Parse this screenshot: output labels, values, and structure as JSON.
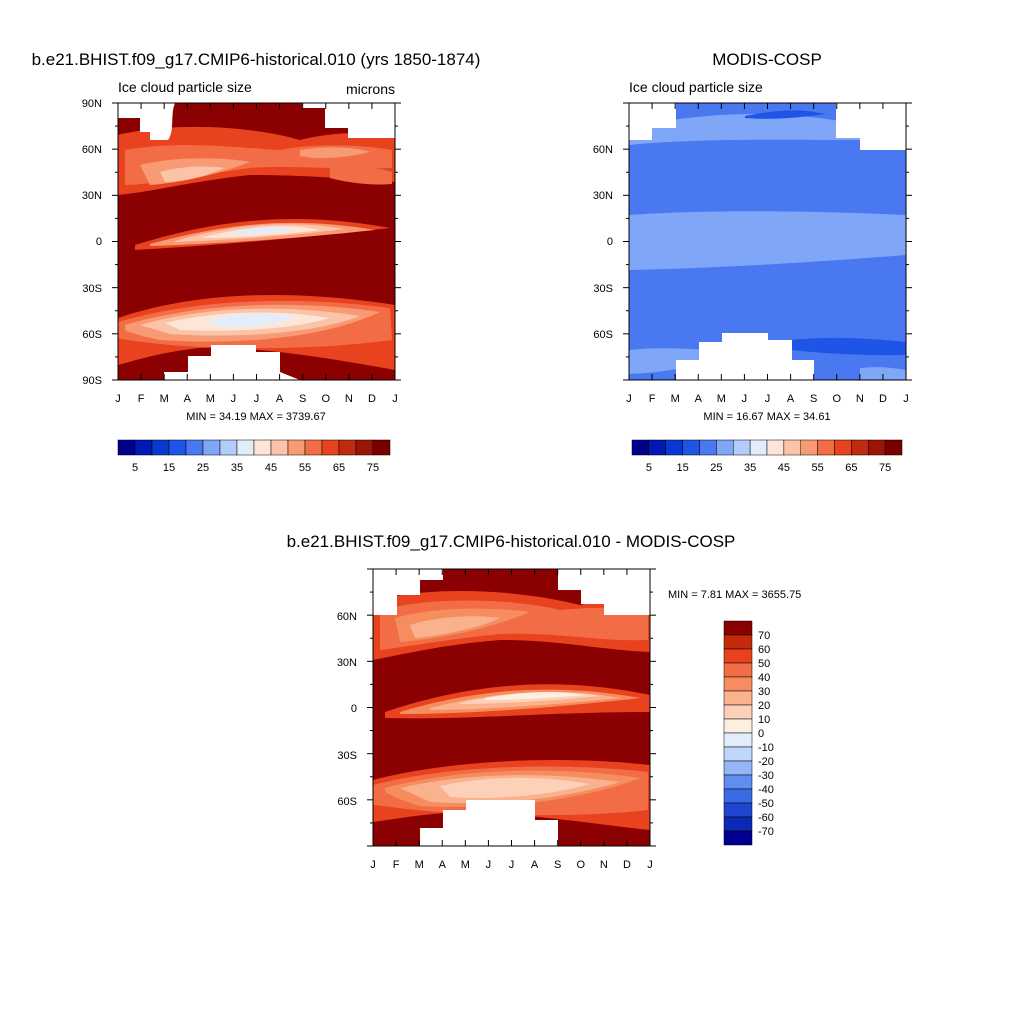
{
  "panels": [
    {
      "title": "b.e21.BHIST.f09_g17.CMIP6-historical.010 (yrs 1850-1874)",
      "subtitle": "Ice cloud particle size",
      "units": "microns",
      "stats": "MIN =  34.19 MAX = 3739.67"
    },
    {
      "title": "MODIS-COSP",
      "subtitle": "Ice cloud particle size",
      "units": "",
      "stats": "MIN =  16.67 MAX =  34.61"
    },
    {
      "title": "b.e21.BHIST.f09_g17.CMIP6-historical.010 - MODIS-COSP",
      "subtitle": "",
      "units": "",
      "stats": "MIN =   7.81 MAX = 3655.75"
    }
  ],
  "months": [
    "J",
    "F",
    "M",
    "A",
    "M",
    "J",
    "J",
    "A",
    "S",
    "O",
    "N",
    "D",
    "J"
  ],
  "lat_labels_top_left": [
    "90N",
    "60N",
    "30N",
    "0",
    "30S",
    "60S",
    "90S"
  ],
  "lat_labels_other": [
    "60N",
    "30N",
    "0",
    "30S",
    "60S"
  ],
  "colorbar_abs": {
    "labels": [
      "5",
      "15",
      "25",
      "35",
      "45",
      "55",
      "65",
      "75"
    ],
    "colors": [
      "#00008b",
      "#0019b4",
      "#0a37d2",
      "#1e55e6",
      "#4a78f0",
      "#7fa6f7",
      "#b3cdfb",
      "#e2edfc",
      "#fde6d8",
      "#fbc4a8",
      "#f89a73",
      "#f26d45",
      "#e84320",
      "#c22a10",
      "#9a1505",
      "#7a0000"
    ]
  },
  "colorbar_diff": {
    "labels": [
      "70",
      "60",
      "50",
      "40",
      "30",
      "20",
      "10",
      "0",
      "-10",
      "-20",
      "-30",
      "-40",
      "-50",
      "-60",
      "-70"
    ],
    "colors": [
      "#8b0000",
      "#c42a0a",
      "#e8421f",
      "#f26d45",
      "#f68d5f",
      "#fab28e",
      "#fdd0b8",
      "#fdeee2",
      "#e2edfc",
      "#c0d6fb",
      "#94b6f7",
      "#5f8ef0",
      "#3a6ae5",
      "#1f46cf",
      "#0a2ab4",
      "#000090"
    ]
  },
  "colors": {
    "dark_red": "#8b0000",
    "orange_red": "#e8421f",
    "blue_mid": "#4a78f0",
    "blue_light": "#7fa6f7"
  },
  "chart_data": [
    {
      "type": "heatmap",
      "title": "b.e21.BHIST.f09_g17.CMIP6-historical.010 (yrs 1850-1874)",
      "subtitle": "Ice cloud particle size",
      "units": "microns",
      "x": [
        "J",
        "F",
        "M",
        "A",
        "M",
        "J",
        "J",
        "A",
        "S",
        "O",
        "N",
        "D",
        "J"
      ],
      "y": [
        "90N",
        "60N",
        "30N",
        "0",
        "30S",
        "60S",
        "90S"
      ],
      "ylim": [
        -90,
        90
      ],
      "min": 34.19,
      "max": 3739.67,
      "colorbar_levels": [
        5,
        15,
        25,
        35,
        45,
        55,
        65,
        75
      ]
    },
    {
      "type": "heatmap",
      "title": "MODIS-COSP",
      "subtitle": "Ice cloud particle size",
      "x": [
        "J",
        "F",
        "M",
        "A",
        "M",
        "J",
        "J",
        "A",
        "S",
        "O",
        "N",
        "D",
        "J"
      ],
      "y": [
        "60N",
        "30N",
        "0",
        "30S",
        "60S"
      ],
      "min": 16.67,
      "max": 34.61,
      "colorbar_levels": [
        5,
        15,
        25,
        35,
        45,
        55,
        65,
        75
      ]
    },
    {
      "type": "heatmap",
      "title": "b.e21.BHIST.f09_g17.CMIP6-historical.010 - MODIS-COSP",
      "x": [
        "J",
        "F",
        "M",
        "A",
        "M",
        "J",
        "J",
        "A",
        "S",
        "O",
        "N",
        "D",
        "J"
      ],
      "y": [
        "60N",
        "30N",
        "0",
        "30S",
        "60S"
      ],
      "min": 7.81,
      "max": 3655.75,
      "colorbar_levels": [
        70,
        60,
        50,
        40,
        30,
        20,
        10,
        0,
        -10,
        -20,
        -30,
        -40,
        -50,
        -60,
        -70
      ]
    }
  ]
}
